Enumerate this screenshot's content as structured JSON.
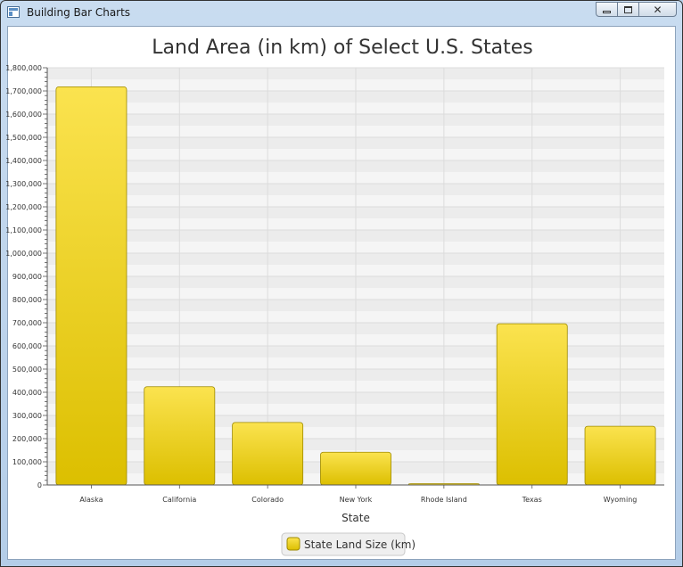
{
  "window": {
    "title": "Building Bar Charts"
  },
  "colors": {
    "bar_top": "#fbe34f",
    "bar_bottom": "#dcbf00",
    "bar_stroke": "#9e8a00",
    "plot_band": "#ececec",
    "plot_band_alt": "#f5f5f5",
    "grid": "#dcdcdc"
  },
  "chart_data": {
    "type": "bar",
    "title": "Land Area (in km) of Select U.S. States",
    "xlabel": "State",
    "ylabel": "",
    "categories": [
      "Alaska",
      "California",
      "Colorado",
      "New York",
      "Rhode Island",
      "Texas",
      "Wyoming"
    ],
    "series": [
      {
        "name": "State Land Size (km)",
        "values": [
          1717854,
          423970,
          269601,
          141299,
          3140,
          695621,
          253336
        ]
      }
    ],
    "ylim": [
      0,
      1800000
    ],
    "yticks": [
      "0",
      "100,000",
      "200,000",
      "300,000",
      "400,000",
      "500,000",
      "600,000",
      "700,000",
      "800,000",
      "900,000",
      "1,000,000",
      "1,100,000",
      "1,200,000",
      "1,300,000",
      "1,400,000",
      "1,500,000",
      "1,600,000",
      "1,700,000",
      "1,800,000"
    ],
    "grid": true,
    "legend_position": "bottom"
  }
}
